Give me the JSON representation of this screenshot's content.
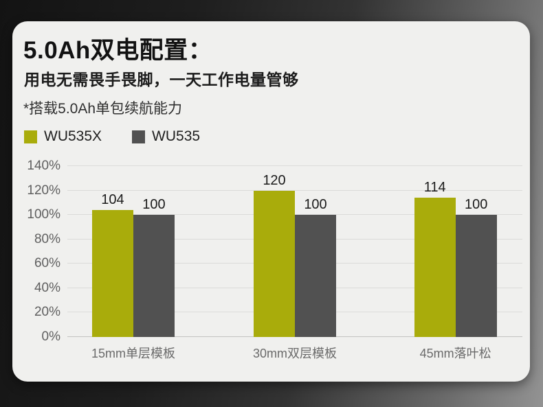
{
  "header": {
    "title": "5.0Ah双电配置：",
    "subtitle": "用电无需畏手畏脚，一天工作电量管够",
    "note": "*搭载5.0Ah单包续航能力"
  },
  "colors": {
    "card_bg": "#f0f0ee",
    "accent": "#a9ac0b",
    "secondary": "#515151",
    "gridline": "#dbdbd9"
  },
  "chart_data": {
    "type": "bar",
    "categories": [
      "15mm单层模板",
      "30mm双层模板",
      "45mm落叶松"
    ],
    "series": [
      {
        "name": "WU535X",
        "color": "#a9ac0b",
        "values": [
          104,
          120,
          114
        ]
      },
      {
        "name": "WU535",
        "color": "#515151",
        "values": [
          100,
          100,
          100
        ]
      }
    ],
    "title": "",
    "xlabel": "",
    "ylabel": "",
    "ylim": [
      0,
      140
    ],
    "ytick_step": 20,
    "ytick_suffix": "%",
    "grid": true,
    "legend_position": "top-left"
  }
}
